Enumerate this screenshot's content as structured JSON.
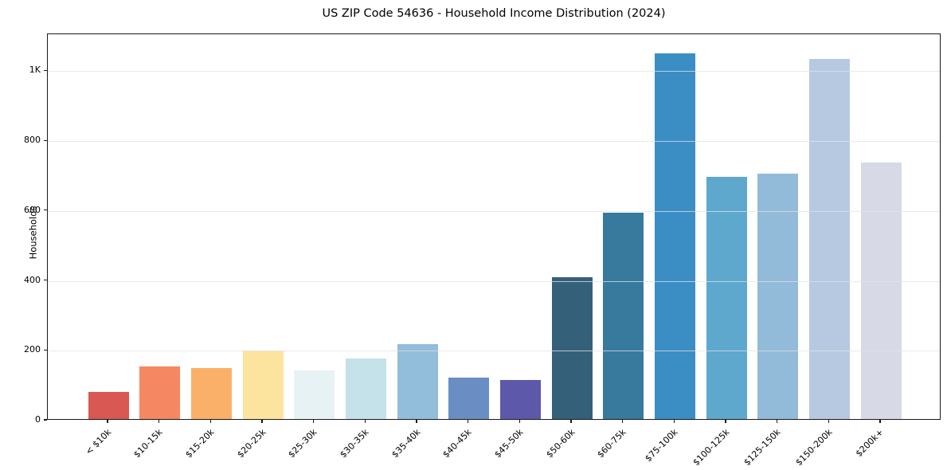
{
  "chart_data": {
    "type": "bar",
    "title": "US ZIP Code 54636 - Household Income Distribution (2024)",
    "xlabel": "",
    "ylabel": "Households",
    "categories": [
      "< $10k",
      "$10-15k",
      "$15-20k",
      "$20-25k",
      "$25-30k",
      "$30-35k",
      "$35-40k",
      "$40-45k",
      "$45-50k",
      "$50-60k",
      "$60-75k",
      "$75-100k",
      "$100-125k",
      "$125-150k",
      "$150-200k",
      "$200k+"
    ],
    "values": [
      78,
      151,
      147,
      197,
      139,
      173,
      214,
      119,
      112,
      405,
      590,
      1046,
      693,
      703,
      1030,
      734
    ],
    "bar_colors": [
      "#d95853",
      "#f58762",
      "#fbb06a",
      "#fde49e",
      "#e7f2f4",
      "#c5e1ea",
      "#92bddb",
      "#6a8ec3",
      "#5d58a9",
      "#35607a",
      "#377a9e",
      "#3a8ec4",
      "#5ea7cd",
      "#92bad9",
      "#b7c9e1",
      "#d8d9e6"
    ],
    "ylim": [
      0,
      1106
    ],
    "ytick_values": [
      0,
      200,
      400,
      600,
      800,
      1000
    ],
    "ytick_labels": [
      "0",
      "200",
      "400",
      "600",
      "800",
      "1K"
    ],
    "grid": "horizontal",
    "legend": "none"
  }
}
